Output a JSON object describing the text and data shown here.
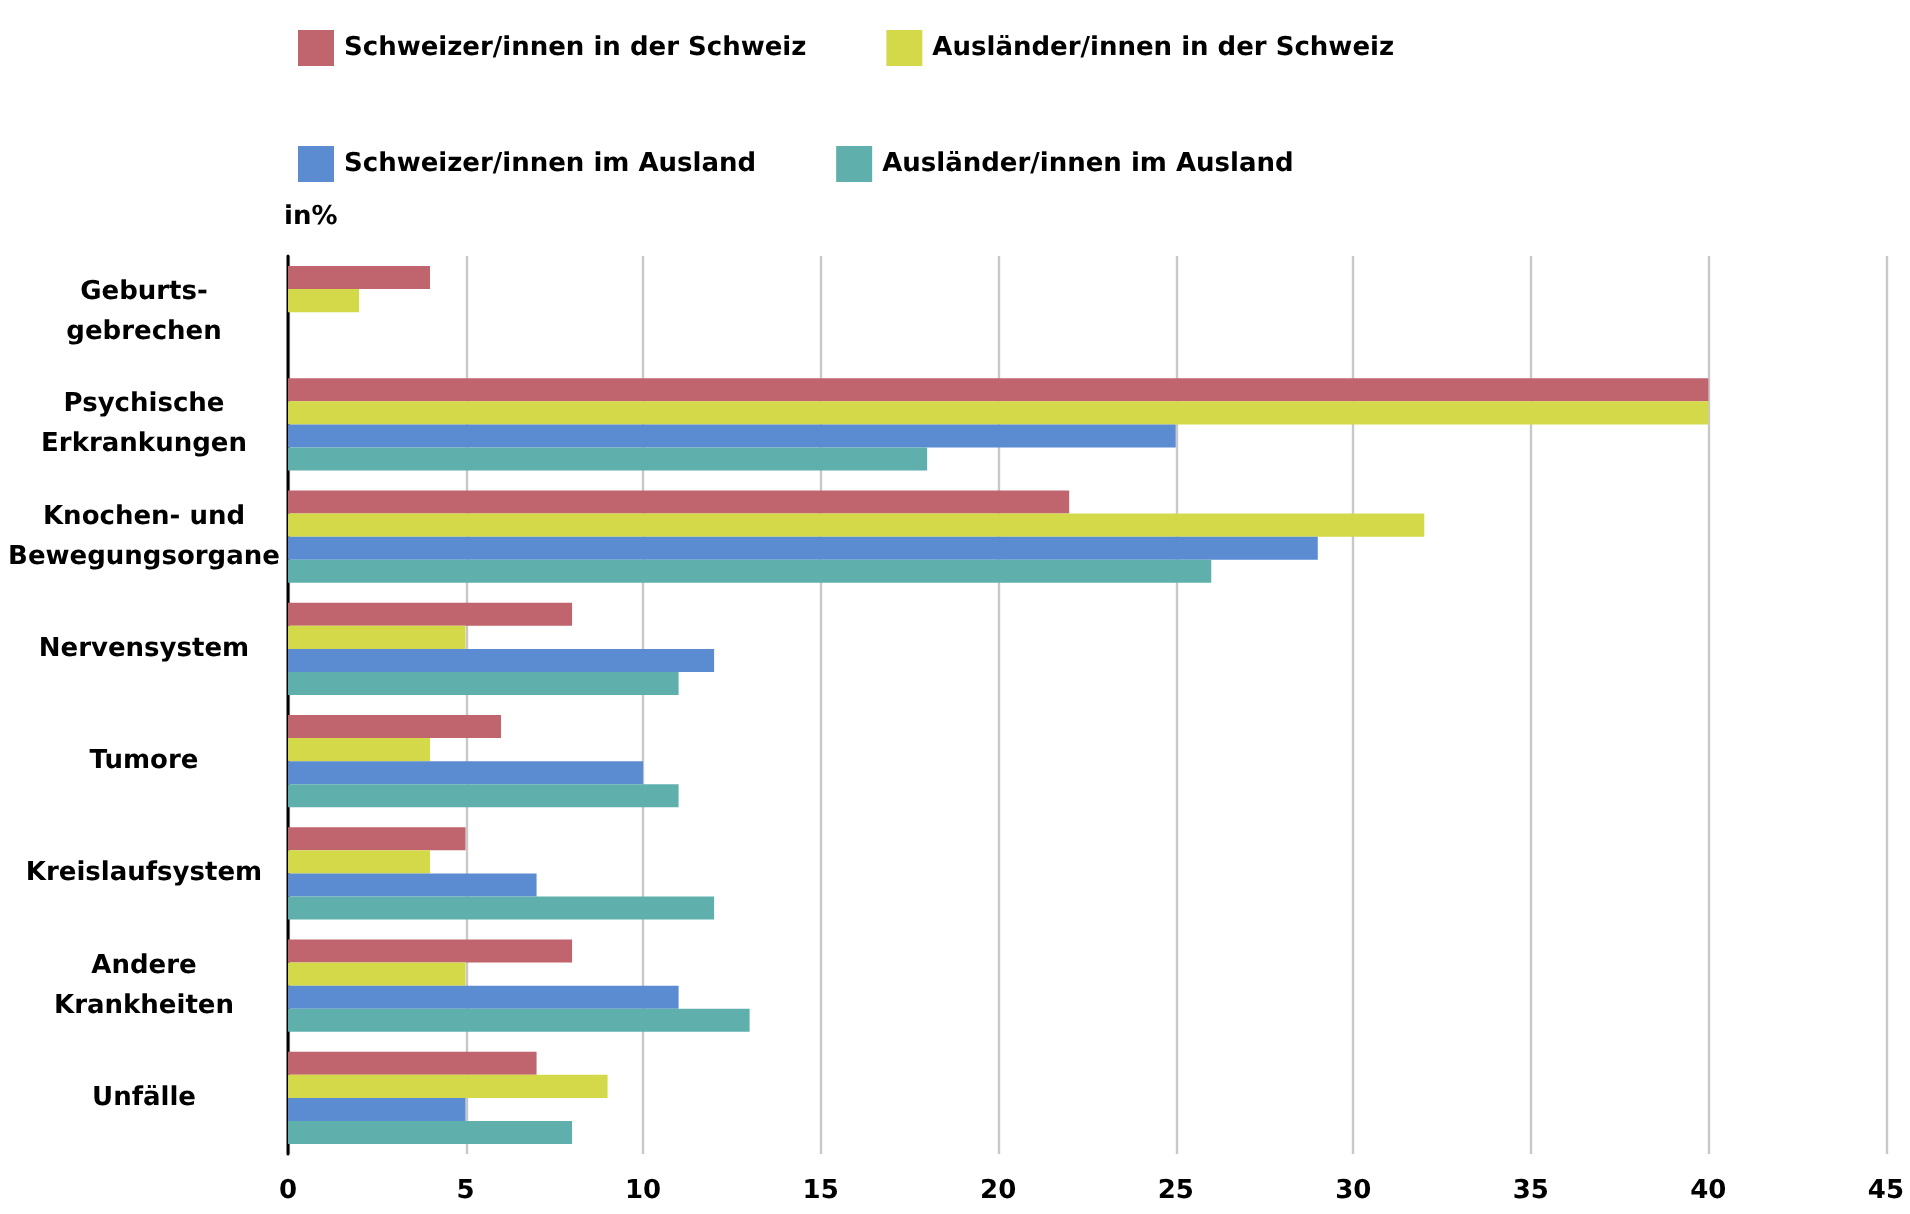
{
  "chart_data": {
    "type": "bar",
    "orientation": "horizontal",
    "xlabel": "in%",
    "categories": [
      "Geburts-\ngebrechen",
      "Psychische\nErkrankungen",
      "Knochen- und\nBewegungsorgane",
      "Nervensystem",
      "Tumore",
      "Kreislaufsystem",
      "Andere\nKrankheiten",
      "Unfälle"
    ],
    "series": [
      {
        "name": "Schweizer/innen in der Schweiz",
        "color": "#c0646e",
        "values": [
          4,
          40,
          22,
          8,
          6,
          5,
          8,
          7
        ]
      },
      {
        "name": "Ausländer/innen in der Schweiz",
        "color": "#d4d94a",
        "values": [
          2,
          40,
          32,
          5,
          4,
          4,
          5,
          9
        ]
      },
      {
        "name": "Schweizer/innen im Ausland",
        "color": "#5b8bd0",
        "values": [
          null,
          25,
          29,
          12,
          10,
          7,
          11,
          5
        ]
      },
      {
        "name": "Ausländer/innen im Ausland",
        "color": "#5fb0ad",
        "values": [
          null,
          18,
          26,
          11,
          11,
          12,
          13,
          8
        ]
      }
    ],
    "xlim": [
      0,
      45
    ],
    "xticks": [
      0,
      5,
      10,
      15,
      20,
      25,
      30,
      35,
      40,
      45
    ],
    "grid": "x",
    "legend": "top"
  }
}
